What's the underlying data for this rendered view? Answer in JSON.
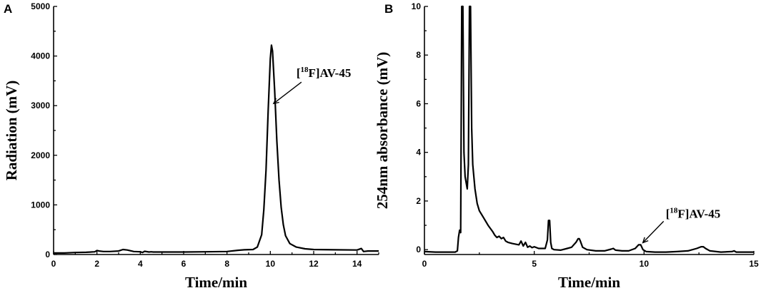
{
  "chart_data": [
    {
      "type": "line",
      "panel": "A",
      "title": "",
      "xlabel": "Time/min",
      "ylabel": "Radiation (mV)",
      "xlim": [
        0,
        15
      ],
      "ylim": [
        0,
        5000
      ],
      "xticks": [
        0,
        2,
        4,
        6,
        8,
        10,
        12,
        14
      ],
      "yticks": [
        0,
        1000,
        2000,
        3000,
        4000,
        5000
      ],
      "grid": false,
      "annotations": [
        {
          "text_main": "F]AV-45",
          "text_pre": "[",
          "text_sup": "18",
          "x": 10.05,
          "y": 3000
        }
      ],
      "series": [
        {
          "x": [
            0.0,
            0.5,
            1.0,
            1.5,
            1.9,
            2.0,
            2.1,
            2.3,
            2.6,
            3.0,
            3.2,
            3.4,
            3.7,
            4.0,
            4.1,
            4.2,
            4.4,
            4.5,
            4.6,
            5.0,
            6.0,
            7.0,
            8.0,
            8.5,
            8.8,
            9.2,
            9.4,
            9.6,
            9.7,
            9.8,
            9.9,
            10.0,
            10.05,
            10.1,
            10.2,
            10.3,
            10.4,
            10.5,
            10.6,
            10.7,
            10.9,
            11.2,
            11.6,
            12.0,
            13.0,
            14.0,
            14.2,
            14.3,
            14.5,
            15.0
          ],
          "y": [
            30,
            30,
            40,
            45,
            55,
            80,
            70,
            60,
            60,
            70,
            100,
            90,
            60,
            55,
            40,
            65,
            50,
            55,
            50,
            50,
            50,
            55,
            60,
            85,
            95,
            100,
            150,
            400,
            900,
            1700,
            2900,
            3950,
            4220,
            4100,
            3300,
            2300,
            1500,
            950,
            600,
            380,
            220,
            150,
            115,
            100,
            95,
            90,
            120,
            60,
            70,
            70
          ]
        }
      ]
    },
    {
      "type": "line",
      "panel": "B",
      "title": "",
      "xlabel": "Time/min",
      "ylabel": "254nm absorbance (mV)",
      "xlim": [
        0,
        15
      ],
      "ylim": [
        -0.2,
        10
      ],
      "xticks": [
        0,
        5,
        10,
        15
      ],
      "yticks": [
        0,
        2,
        4,
        6,
        8,
        10
      ],
      "grid": false,
      "annotations": [
        {
          "text_main": "F]AV-45",
          "text_pre": "[",
          "text_sup": "18",
          "x": 9.85,
          "y": 0.2
        }
      ],
      "series": [
        {
          "x": [
            0.0,
            0.5,
            1.0,
            1.4,
            1.5,
            1.55,
            1.6,
            1.65,
            1.7,
            1.75,
            1.8,
            1.85,
            1.95,
            2.0,
            2.05,
            2.1,
            2.15,
            2.2,
            2.3,
            2.4,
            2.5,
            2.7,
            2.9,
            3.1,
            3.2,
            3.3,
            3.4,
            3.5,
            3.6,
            3.7,
            3.8,
            4.0,
            4.3,
            4.4,
            4.5,
            4.6,
            4.7,
            4.8,
            4.9,
            5.0,
            5.2,
            5.5,
            5.6,
            5.65,
            5.7,
            5.75,
            5.8,
            5.9,
            6.2,
            6.5,
            6.7,
            6.9,
            7.0,
            7.05,
            7.1,
            7.2,
            7.4,
            7.8,
            8.2,
            8.5,
            8.6,
            8.7,
            9.0,
            9.3,
            9.6,
            9.75,
            9.85,
            9.95,
            10.1,
            10.5,
            11.0,
            11.5,
            12.0,
            12.4,
            12.6,
            12.7,
            12.8,
            13.0,
            13.5,
            14.0,
            14.1,
            14.2,
            14.5,
            15.0
          ],
          "y": [
            -0.08,
            -0.1,
            -0.1,
            -0.1,
            -0.05,
            0.5,
            0.8,
            0.7,
            10.5,
            10.5,
            4.0,
            3.0,
            2.5,
            3.5,
            10.5,
            10.5,
            5.0,
            3.5,
            2.5,
            1.9,
            1.6,
            1.3,
            1.0,
            0.75,
            0.6,
            0.5,
            0.55,
            0.45,
            0.5,
            0.35,
            0.3,
            0.25,
            0.2,
            0.35,
            0.15,
            0.3,
            0.1,
            0.15,
            0.08,
            0.12,
            0.05,
            0.05,
            0.4,
            1.2,
            1.2,
            0.3,
            0.05,
            0.0,
            -0.02,
            0.05,
            0.1,
            0.3,
            0.45,
            0.45,
            0.35,
            0.1,
            0.0,
            -0.05,
            -0.05,
            0.02,
            0.05,
            -0.02,
            -0.05,
            -0.05,
            0.05,
            0.2,
            0.2,
            0.0,
            -0.08,
            -0.1,
            -0.1,
            -0.08,
            -0.05,
            0.05,
            0.12,
            0.12,
            0.05,
            -0.05,
            -0.1,
            -0.08,
            -0.05,
            -0.1,
            -0.1,
            -0.1
          ]
        }
      ]
    }
  ]
}
